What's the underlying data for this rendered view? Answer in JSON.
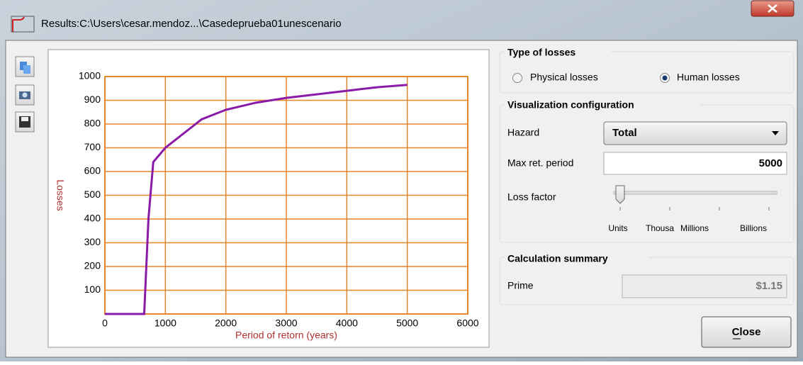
{
  "window": {
    "title": "Results:C:\\Users\\cesar.mendoz...\\Casedeprueba01unescenario"
  },
  "chart_data": {
    "type": "line",
    "ylabel": "Losses",
    "xlabel": "Period of retorn (years)",
    "x": [
      0,
      650,
      720,
      800,
      1000,
      1200,
      1600,
      2000,
      2500,
      3000,
      3500,
      4000,
      4500,
      5000
    ],
    "values": [
      0,
      0,
      400,
      640,
      700,
      740,
      820,
      860,
      890,
      910,
      925,
      940,
      955,
      965
    ],
    "color": "#8a1aa8",
    "grid": true,
    "grid_color": "#e8842a",
    "xlim": [
      0,
      6000
    ],
    "xticks": [
      0,
      1000,
      2000,
      3000,
      4000,
      5000,
      6000
    ],
    "ylim": [
      0,
      1000
    ],
    "yticks": [
      100,
      200,
      300,
      400,
      500,
      600,
      700,
      800,
      900,
      1000
    ]
  },
  "panel": {
    "losses": {
      "title": "Type of losses",
      "options": [
        "Physical losses",
        "Human losses"
      ],
      "selected": 1
    },
    "visualization": {
      "title": "Visualization configuration",
      "hazard_label": "Hazard",
      "hazard_value": "Total",
      "max_ret_label": "Max ret. period",
      "max_ret_value": "5000",
      "loss_factor_label": "Loss factor",
      "loss_factor_options": [
        "Units",
        "Thousa",
        "Millions",
        "Billions"
      ],
      "loss_factor_selected": 0
    },
    "summary": {
      "title": "Calculation summary",
      "prime_label": "Prime",
      "prime_value": "$1.15"
    },
    "close": "Close"
  }
}
